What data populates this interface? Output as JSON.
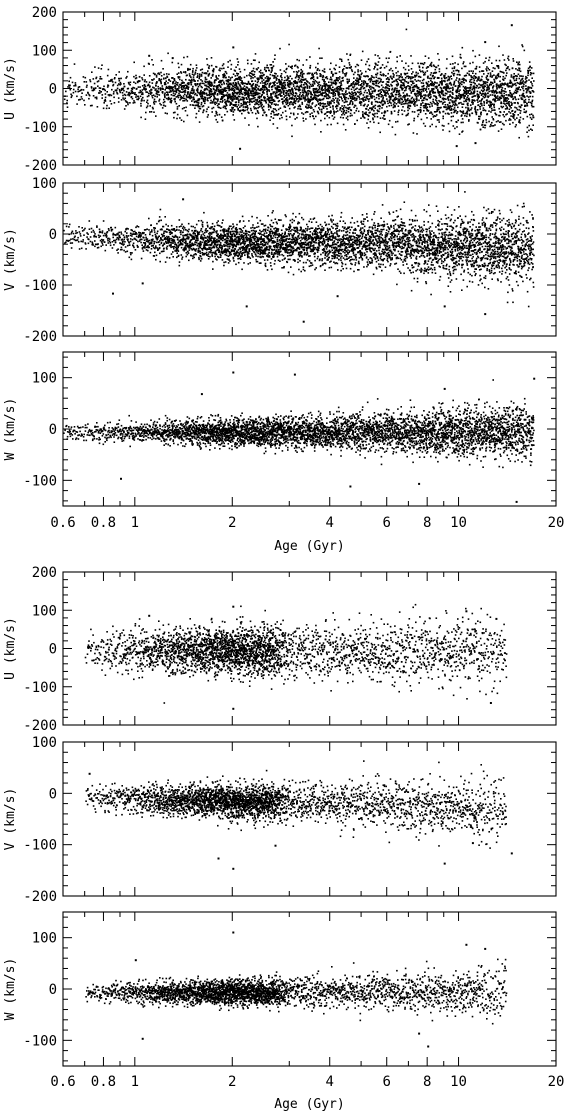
{
  "chart_data": [
    {
      "type": "scatter",
      "title": "",
      "xlabel": "Age (Gyr)",
      "xscale": "log",
      "xlim": [
        0.6,
        20
      ],
      "xticks": [
        "0.6",
        "0.8",
        "1",
        "2",
        "4",
        "6",
        "8",
        "10",
        "20"
      ],
      "panels": [
        {
          "ylabel": "U (km/s)",
          "ylim": [
            -200,
            200
          ],
          "yticks": [
            "200",
            "100",
            "0",
            "-100",
            "-200"
          ],
          "density_profile": [
            [
              0.6,
              1
            ],
            [
              1,
              3
            ],
            [
              2,
              9
            ],
            [
              3,
              8
            ],
            [
              6,
              7
            ],
            [
              10,
              8
            ],
            [
              14,
              8
            ],
            [
              17,
              6
            ]
          ],
          "spread_profile": [
            [
              0.6,
              22
            ],
            [
              1,
              28
            ],
            [
              2,
              32
            ],
            [
              4,
              36
            ],
            [
              10,
              40
            ],
            [
              17,
              45
            ]
          ],
          "mean_profile": [
            [
              0.6,
              -2
            ],
            [
              17,
              -10
            ]
          ],
          "series": [
            {
              "name": "",
              "points": [
                [
                  1.3,
                  82
                ],
                [
                  1.1,
                  88
                ],
                [
                  2,
                  110
                ],
                [
                  14.5,
                  168
                ],
                [
                  9.8,
                  -148
                ],
                [
                  11.2,
                  -140
                ],
                [
                  2.1,
                  -155
                ],
                [
                  12,
                  124
                ]
              ]
            }
          ]
        },
        {
          "ylabel": "V (km/s)",
          "ylim": [
            -200,
            100
          ],
          "yticks": [
            "100",
            "0",
            "-100",
            "-200"
          ],
          "density_profile": [
            [
              0.6,
              1
            ],
            [
              1,
              3
            ],
            [
              2,
              9
            ],
            [
              3,
              8
            ],
            [
              6,
              7
            ],
            [
              10,
              8
            ],
            [
              14,
              8
            ],
            [
              17,
              6
            ]
          ],
          "spread_profile": [
            [
              0.6,
              12
            ],
            [
              1,
              15
            ],
            [
              2,
              18
            ],
            [
              4,
              22
            ],
            [
              10,
              30
            ],
            [
              17,
              36
            ]
          ],
          "mean_profile": [
            [
              0.6,
              -5
            ],
            [
              2,
              -15
            ],
            [
              6,
              -18
            ],
            [
              17,
              -30
            ]
          ],
          "series": [
            {
              "name": "",
              "points": [
                [
                  1.4,
                  70
                ],
                [
                  2.2,
                  -140
                ],
                [
                  3.3,
                  -170
                ],
                [
                  9,
                  -140
                ],
                [
                  1.05,
                  -95
                ],
                [
                  0.85,
                  -115
                ],
                [
                  12,
                  -155
                ],
                [
                  4.2,
                  -120
                ]
              ]
            }
          ]
        },
        {
          "ylabel": "W (km/s)",
          "ylim": [
            -150,
            150
          ],
          "yticks": [
            "100",
            "0",
            "-100"
          ],
          "density_profile": [
            [
              0.6,
              1
            ],
            [
              1,
              3
            ],
            [
              2,
              9
            ],
            [
              3,
              8
            ],
            [
              6,
              7
            ],
            [
              10,
              8
            ],
            [
              14,
              8
            ],
            [
              17,
              6
            ]
          ],
          "spread_profile": [
            [
              0.6,
              8
            ],
            [
              1,
              10
            ],
            [
              2,
              13
            ],
            [
              4,
              16
            ],
            [
              10,
              22
            ],
            [
              17,
              26
            ]
          ],
          "mean_profile": [
            [
              0.6,
              -5
            ],
            [
              17,
              -5
            ]
          ],
          "series": [
            {
              "name": "",
              "points": [
                [
                  2,
                  112
                ],
                [
                  3.1,
                  108
                ],
                [
                  1.6,
                  70
                ],
                [
                  9,
                  80
                ],
                [
                  17,
                  100
                ],
                [
                  7.5,
                  -105
                ],
                [
                  4.6,
                  -110
                ],
                [
                  0.9,
                  -95
                ],
                [
                  15,
                  -140
                ]
              ]
            }
          ]
        }
      ]
    },
    {
      "type": "scatter",
      "title": "",
      "xlabel": "Age (Gyr)",
      "xscale": "log",
      "xlim": [
        0.6,
        20
      ],
      "xticks": [
        "0.6",
        "0.8",
        "1",
        "2",
        "4",
        "6",
        "8",
        "10",
        "20"
      ],
      "panels": [
        {
          "ylabel": "U (km/s)",
          "ylim": [
            -200,
            200
          ],
          "yticks": [
            "200",
            "100",
            "0",
            "-100",
            "-200"
          ],
          "density_profile": [
            [
              0.7,
              1
            ],
            [
              1,
              3
            ],
            [
              2,
              10
            ],
            [
              2.6,
              9
            ],
            [
              3,
              3
            ],
            [
              6,
              3
            ],
            [
              10,
              3
            ],
            [
              14,
              2
            ]
          ],
          "spread_profile": [
            [
              0.7,
              24
            ],
            [
              1,
              28
            ],
            [
              2,
              30
            ],
            [
              4,
              36
            ],
            [
              10,
              40
            ],
            [
              14,
              42
            ]
          ],
          "mean_profile": [
            [
              0.7,
              -2
            ],
            [
              14,
              -8
            ]
          ],
          "series": [
            {
              "name": "",
              "points": [
                [
                  2,
                  112
                ],
                [
                  2,
                  -155
                ],
                [
                  1.1,
                  88
                ],
                [
                  12.5,
                  -140
                ],
                [
                  10.5,
                  100
                ],
                [
                  13,
                  80
                ]
              ]
            }
          ]
        },
        {
          "ylabel": "V (km/s)",
          "ylim": [
            -200,
            100
          ],
          "yticks": [
            "100",
            "0",
            "-100",
            "-200"
          ],
          "density_profile": [
            [
              0.7,
              1
            ],
            [
              1,
              3
            ],
            [
              2,
              10
            ],
            [
              2.6,
              9
            ],
            [
              3,
              3
            ],
            [
              6,
              3
            ],
            [
              10,
              3
            ],
            [
              14,
              2
            ]
          ],
          "spread_profile": [
            [
              0.7,
              12
            ],
            [
              1,
              14
            ],
            [
              2,
              16
            ],
            [
              4,
              20
            ],
            [
              10,
              28
            ],
            [
              14,
              32
            ]
          ],
          "mean_profile": [
            [
              0.7,
              -8
            ],
            [
              2,
              -15
            ],
            [
              6,
              -20
            ],
            [
              14,
              -35
            ]
          ],
          "series": [
            {
              "name": "",
              "points": [
                [
                  0.72,
                  40
                ],
                [
                  1.8,
                  -125
                ],
                [
                  2,
                  -145
                ],
                [
                  2.7,
                  -100
                ],
                [
                  9,
                  -135
                ],
                [
                  14.5,
                  -115
                ],
                [
                  11,
                  -95
                ]
              ]
            }
          ]
        },
        {
          "ylabel": "W (km/s)",
          "ylim": [
            -150,
            150
          ],
          "yticks": [
            "100",
            "0",
            "-100"
          ],
          "density_profile": [
            [
              0.7,
              1
            ],
            [
              1,
              3
            ],
            [
              2,
              10
            ],
            [
              2.6,
              9
            ],
            [
              3,
              3
            ],
            [
              6,
              3
            ],
            [
              10,
              3
            ],
            [
              14,
              2
            ]
          ],
          "spread_profile": [
            [
              0.7,
              8
            ],
            [
              1,
              10
            ],
            [
              2,
              12
            ],
            [
              4,
              15
            ],
            [
              10,
              20
            ],
            [
              14,
              24
            ]
          ],
          "mean_profile": [
            [
              0.7,
              -6
            ],
            [
              14,
              -4
            ]
          ],
          "series": [
            {
              "name": "",
              "points": [
                [
                  2,
                  112
                ],
                [
                  1.05,
                  -95
                ],
                [
                  10.5,
                  88
                ],
                [
                  8,
                  -110
                ],
                [
                  12,
                  80
                ],
                [
                  7.5,
                  -85
                ],
                [
                  1,
                  58
                ]
              ]
            }
          ]
        }
      ]
    }
  ]
}
